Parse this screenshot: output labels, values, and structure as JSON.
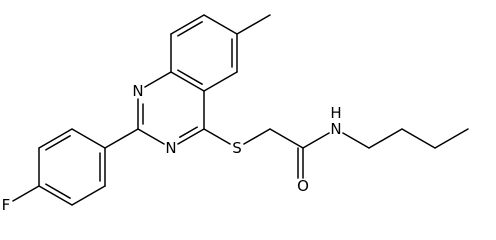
{
  "molecule": {
    "atoms": [
      {
        "label": "N"
      },
      {
        "label": "N"
      },
      {
        "label": "S"
      },
      {
        "label": "O"
      },
      {
        "label": "N",
        "hydrogen": "H"
      },
      {
        "label": "F"
      }
    ]
  }
}
